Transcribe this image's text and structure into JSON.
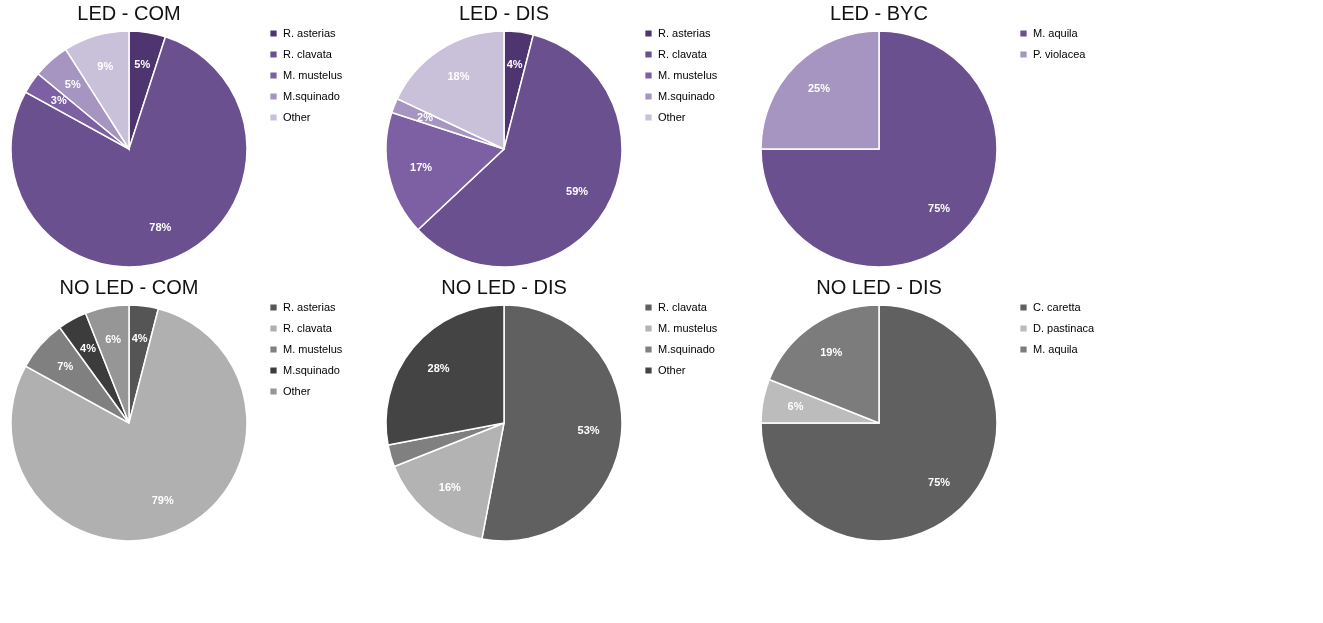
{
  "chart_data": [
    {
      "type": "pie",
      "title": "LED - COM",
      "categories": [
        "R. asterias",
        "R. clavata",
        "M. mustelus",
        "M.squinado",
        "Other"
      ],
      "values": [
        5,
        78,
        3,
        5,
        9
      ],
      "value_labels": [
        "5%",
        "78%",
        "3%",
        "5%",
        "9%"
      ],
      "colors": [
        "#4e3570",
        "#6b5090",
        "#7d5fa3",
        "#a595c0",
        "#c9c0da"
      ],
      "legend": "right"
    },
    {
      "type": "pie",
      "title": "LED - DIS",
      "categories": [
        "R. asterias",
        "R. clavata",
        "M. mustelus",
        "M.squinado",
        "Other"
      ],
      "values": [
        4,
        59,
        17,
        2,
        18
      ],
      "value_labels": [
        "4%",
        "59%",
        "17%",
        "2%",
        "18%"
      ],
      "colors": [
        "#4e3570",
        "#6b5090",
        "#7d5fa3",
        "#a595c0",
        "#c9c0da"
      ],
      "legend": "right"
    },
    {
      "type": "pie",
      "title": "LED - BYC",
      "categories": [
        "M. aquila",
        "P. violacea"
      ],
      "values": [
        75,
        25
      ],
      "value_labels": [
        "75%",
        "25%"
      ],
      "colors": [
        "#6b5090",
        "#a595c0"
      ],
      "legend": "right"
    },
    {
      "type": "pie",
      "title": "NO LED - COM",
      "categories": [
        "R. asterias",
        "R. clavata",
        "M. mustelus",
        "M.squinado",
        "Other"
      ],
      "values": [
        4,
        79,
        7,
        4,
        6
      ],
      "value_labels": [
        "4%",
        "79%",
        "7%",
        "4%",
        "6%"
      ],
      "colors": [
        "#555555",
        "#b0b0b0",
        "#808080",
        "#3c3c3c",
        "#969696"
      ],
      "legend": "right"
    },
    {
      "type": "pie",
      "title": "NO LED - DIS",
      "categories": [
        "R. clavata",
        "M. mustelus",
        "M.squinado",
        "Other"
      ],
      "values": [
        53,
        16,
        3,
        28
      ],
      "value_labels": [
        "53%",
        "16%",
        null,
        "28%"
      ],
      "colors": [
        "#606060",
        "#b3b3b3",
        "#808080",
        "#444444"
      ],
      "legend": "right"
    },
    {
      "type": "pie",
      "title": "NO LED - DIS",
      "categories": [
        "C. caretta",
        "D. pastinaca",
        "M. aquila"
      ],
      "values": [
        75,
        6,
        19
      ],
      "value_labels": [
        "75%",
        "6%",
        "19%"
      ],
      "colors": [
        "#606060",
        "#bcbcbc",
        "#7c7c7c"
      ],
      "legend": "right"
    }
  ]
}
